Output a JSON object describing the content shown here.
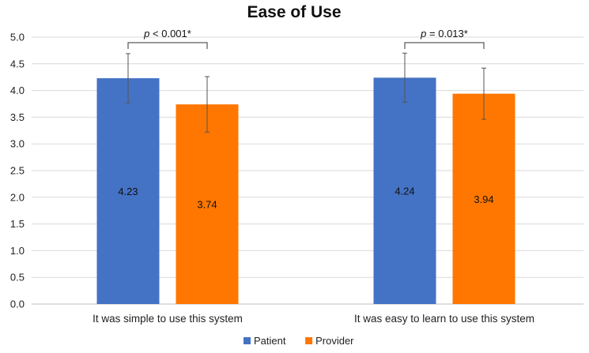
{
  "chart_data": {
    "type": "bar",
    "title": "Ease of Use",
    "xlabel": "",
    "ylabel": "",
    "ylim": [
      0,
      5
    ],
    "y_ticks": [
      "0.0",
      "0.5",
      "1.0",
      "1.5",
      "2.0",
      "2.5",
      "3.0",
      "3.5",
      "4.0",
      "4.5",
      "5.0"
    ],
    "categories": [
      "It was simple to use this system",
      "It was easy to learn to use this system"
    ],
    "series": [
      {
        "name": "Patient",
        "color": "#4472C4",
        "values": [
          4.23,
          4.24
        ],
        "value_labels": [
          "4.23",
          "4.24"
        ],
        "error": [
          0.46,
          0.46
        ]
      },
      {
        "name": "Provider",
        "color": "#FF7700",
        "values": [
          3.74,
          3.94
        ],
        "value_labels": [
          "3.74",
          "3.94"
        ],
        "error": [
          0.52,
          0.48
        ]
      }
    ],
    "annotations": [
      {
        "italic": "p",
        "rest": " < 0.001*"
      },
      {
        "italic": "p",
        "rest": " = 0.013*"
      }
    ],
    "grid": true,
    "legend_position": "bottom"
  }
}
